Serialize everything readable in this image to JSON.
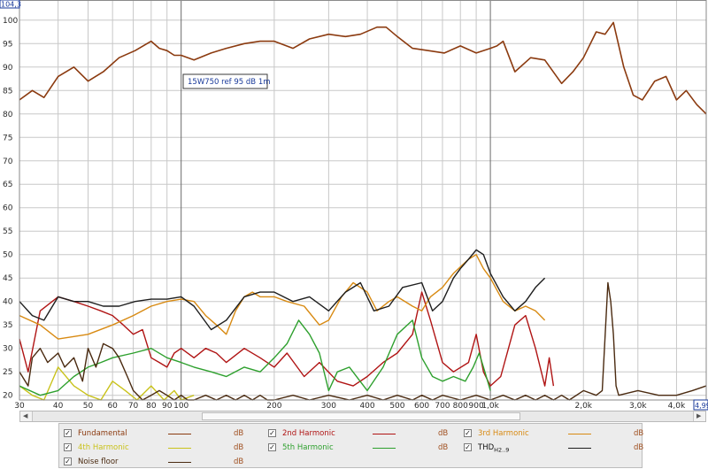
{
  "chart_data": {
    "type": "line",
    "xscale": "log",
    "xlim": [
      30,
      4990
    ],
    "ylim": [
      19,
      104.3
    ],
    "y_ticks": [
      20,
      25,
      30,
      35,
      40,
      45,
      50,
      55,
      60,
      65,
      70,
      75,
      80,
      85,
      90,
      95,
      100
    ],
    "x_ticks": [
      {
        "v": 30,
        "label": "30"
      },
      {
        "v": 40,
        "label": "40"
      },
      {
        "v": 50,
        "label": "50"
      },
      {
        "v": 60,
        "label": "60"
      },
      {
        "v": 70,
        "label": "70"
      },
      {
        "v": 80,
        "label": "80"
      },
      {
        "v": 90,
        "label": "90"
      },
      {
        "v": 100,
        "label": "100"
      },
      {
        "v": 200,
        "label": "200"
      },
      {
        "v": 300,
        "label": "300"
      },
      {
        "v": 400,
        "label": "400"
      },
      {
        "v": 500,
        "label": "500"
      },
      {
        "v": 600,
        "label": "600"
      },
      {
        "v": 700,
        "label": "700"
      },
      {
        "v": 800,
        "label": "800"
      },
      {
        "v": 900,
        "label": "900"
      },
      {
        "v": 1000,
        "label": "1,0k"
      },
      {
        "v": 2000,
        "label": "2,0k"
      },
      {
        "v": 3000,
        "label": "3,0k"
      },
      {
        "v": 4000,
        "label": "4,0k"
      }
    ],
    "y_max_label": "104,3",
    "x_max_label": "4,99",
    "annotation": "15W750 ref 95 dB 1m",
    "series": [
      {
        "name": "Fundamental",
        "color": "#8b3a0f",
        "x": [
          30,
          33,
          36,
          40,
          45,
          50,
          56,
          63,
          71,
          80,
          85,
          90,
          95,
          100,
          110,
          125,
          140,
          160,
          180,
          200,
          230,
          260,
          300,
          340,
          380,
          430,
          460,
          500,
          560,
          630,
          710,
          800,
          900,
          1000,
          1050,
          1100,
          1200,
          1350,
          1500,
          1700,
          1850,
          2000,
          2200,
          2350,
          2500,
          2700,
          2900,
          3100,
          3400,
          3700,
          4000,
          4300,
          4650,
          4990
        ],
        "y": [
          83,
          85,
          83.5,
          88,
          90,
          87,
          89,
          92,
          93.5,
          95.5,
          94,
          93.5,
          92.5,
          92.5,
          91.5,
          93,
          94,
          95,
          95.5,
          95.5,
          94,
          96,
          97,
          96.5,
          97,
          98.5,
          98.5,
          96.5,
          94,
          93.5,
          93,
          94.5,
          93,
          94,
          94.5,
          95.5,
          89,
          92,
          91.5,
          86.5,
          89,
          92,
          97.5,
          97,
          99.5,
          90,
          84,
          83,
          87,
          88,
          83,
          85,
          82,
          80
        ]
      },
      {
        "name": "2nd Harmonic",
        "color": "#b01414",
        "x": [
          30,
          32,
          35,
          40,
          45,
          50,
          55,
          60,
          65,
          70,
          75,
          80,
          85,
          90,
          95,
          100,
          110,
          120,
          130,
          140,
          160,
          180,
          200,
          220,
          250,
          280,
          320,
          360,
          400,
          450,
          500,
          560,
          600,
          640,
          700,
          760,
          850,
          900,
          950,
          1000,
          1080,
          1200,
          1300,
          1400,
          1500,
          1550,
          1600
        ],
        "y": [
          32,
          25,
          38,
          41,
          40,
          39,
          38,
          37,
          35,
          33,
          34,
          28,
          27,
          26,
          29,
          30,
          28,
          30,
          29,
          27,
          30,
          28,
          26,
          29,
          24,
          27,
          23,
          22,
          24,
          27,
          29,
          33,
          42,
          36,
          27,
          25,
          27,
          33,
          25,
          22,
          24,
          35,
          37,
          30,
          22,
          28,
          22
        ]
      },
      {
        "name": "3rd Harmonic",
        "color": "#d88a12",
        "x": [
          30,
          35,
          40,
          50,
          60,
          70,
          80,
          90,
          100,
          110,
          120,
          130,
          140,
          150,
          160,
          170,
          180,
          200,
          220,
          250,
          280,
          300,
          330,
          360,
          400,
          430,
          470,
          500,
          560,
          600,
          640,
          700,
          760,
          850,
          900,
          950,
          1000,
          1100,
          1200,
          1300,
          1400,
          1500
        ],
        "y": [
          37,
          35,
          32,
          33,
          35,
          37,
          39,
          40,
          40.5,
          40,
          37,
          35,
          33,
          38,
          41,
          42,
          41,
          41,
          40,
          39,
          35,
          36,
          41,
          44,
          42,
          38,
          40,
          41,
          39,
          38,
          41,
          43,
          46,
          49,
          50,
          47,
          45,
          40,
          38,
          39,
          38,
          36
        ]
      },
      {
        "name": "4th Harmonic",
        "color": "#c9c21a",
        "x": [
          30,
          33,
          36,
          40,
          45,
          50,
          55,
          60,
          66,
          72,
          80,
          88,
          95,
          100,
          110
        ],
        "y": [
          22,
          20,
          19,
          26,
          22,
          20,
          19,
          23,
          21,
          19,
          22,
          19,
          21,
          19,
          20
        ]
      },
      {
        "name": "5th Harmonic",
        "color": "#2ea02e",
        "x": [
          30,
          35,
          40,
          45,
          50,
          55,
          60,
          70,
          80,
          90,
          100,
          110,
          125,
          140,
          160,
          180,
          200,
          220,
          240,
          260,
          280,
          300,
          320,
          350,
          400,
          450,
          500,
          560,
          600,
          650,
          700,
          760,
          830,
          880,
          920,
          960,
          1000
        ],
        "y": [
          22,
          20,
          21,
          24,
          26,
          27,
          28,
          29,
          30,
          28,
          27,
          26,
          25,
          24,
          26,
          25,
          28,
          31,
          36,
          33,
          29,
          21,
          25,
          26,
          21,
          26,
          33,
          36,
          28,
          24,
          23,
          24,
          23,
          26,
          29,
          25,
          21
        ]
      },
      {
        "name": "THD H2..9",
        "color": "#1e1e1e",
        "x": [
          30,
          33,
          36,
          40,
          45,
          50,
          56,
          63,
          71,
          80,
          90,
          100,
          110,
          125,
          140,
          160,
          180,
          200,
          230,
          260,
          300,
          340,
          380,
          420,
          470,
          520,
          600,
          650,
          700,
          760,
          800,
          850,
          900,
          950,
          1000,
          1100,
          1200,
          1300,
          1400,
          1500
        ],
        "y": [
          40,
          37,
          36,
          41,
          40,
          40,
          39,
          39,
          40,
          40.5,
          40.5,
          41,
          39,
          34,
          36,
          41,
          42,
          42,
          40,
          41,
          38,
          42,
          44,
          38,
          39,
          43,
          44,
          38,
          40,
          45,
          47,
          49,
          51,
          50,
          46,
          41,
          38,
          40,
          43,
          45
        ]
      },
      {
        "name": "Noise floor",
        "color": "#4a2a10",
        "x": [
          30,
          32,
          33,
          35,
          37,
          40,
          42,
          45,
          48,
          50,
          53,
          56,
          60,
          63,
          67,
          70,
          75,
          80,
          85,
          90,
          95,
          100,
          105,
          110,
          120,
          130,
          140,
          150,
          160,
          170,
          180,
          190,
          200,
          230,
          260,
          300,
          350,
          400,
          450,
          500,
          560,
          600,
          650,
          700,
          800,
          900,
          1000,
          1100,
          1200,
          1300,
          1400,
          1500,
          1600,
          1700,
          1800,
          2000,
          2200,
          2300,
          2400,
          2450,
          2500,
          2550,
          2600,
          3000,
          3500,
          4000,
          4500,
          4990
        ],
        "y": [
          25,
          22,
          28,
          30,
          27,
          29,
          26,
          28,
          23,
          30,
          26,
          31,
          30,
          28,
          24,
          21,
          19,
          20,
          21,
          20,
          19,
          20,
          19,
          19,
          20,
          19,
          20,
          19,
          20,
          19,
          20,
          19,
          19,
          20,
          19,
          20,
          19,
          20,
          19,
          20,
          19,
          20,
          19,
          20,
          19,
          20,
          19,
          20,
          19,
          20,
          19,
          20,
          19,
          20,
          19,
          21,
          20,
          21,
          44,
          40,
          33,
          22,
          20,
          21,
          20,
          20,
          21,
          22
        ]
      }
    ]
  },
  "legend": {
    "unit": "dB",
    "checkmark": "✓",
    "items": [
      {
        "label": "Fundamental",
        "color": "#8b3a0f",
        "checked": true
      },
      {
        "label": "2nd Harmonic",
        "color": "#b01414",
        "checked": true
      },
      {
        "label": "3rd Harmonic",
        "color": "#d88a12",
        "checked": true
      },
      {
        "label": "4th Harmonic",
        "color": "#c9c21a",
        "checked": true
      },
      {
        "label": "5th Harmonic",
        "color": "#2ea02e",
        "checked": true
      },
      {
        "label": "THD",
        "sub": "H2..9",
        "color": "#1e1e1e",
        "checked": true
      },
      {
        "label": "Noise floor",
        "color": "#4a2a10",
        "checked": true
      }
    ]
  },
  "colors": {
    "grid": "#c8c8c8",
    "major_grid": "#6a6a6a",
    "axis_box": "#1a3a9a"
  }
}
